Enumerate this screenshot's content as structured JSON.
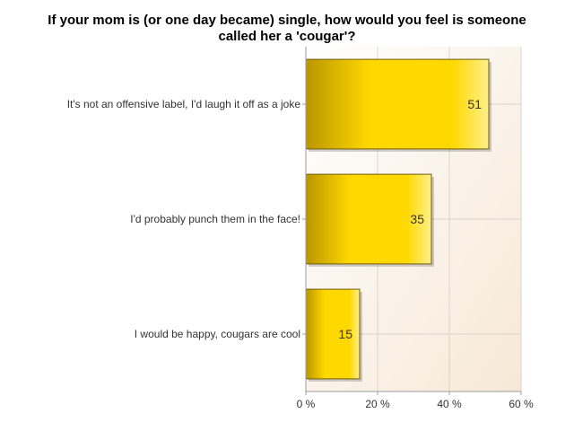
{
  "chart_data": {
    "type": "bar",
    "orientation": "horizontal",
    "title_lines": [
      "If your mom is (or one day became) single, how would you feel is someone",
      "called her a 'cougar'?"
    ],
    "categories": [
      "It's not an offensive label, I'd laugh it off as a joke",
      "I'd probably punch them in the face!",
      "I would be happy,  cougars are cool"
    ],
    "values": [
      51,
      35,
      15
    ],
    "value_labels": [
      "51",
      "35",
      "15"
    ],
    "xlim": [
      0,
      60
    ],
    "x_ticks": [
      0,
      20,
      40,
      60
    ],
    "x_tick_labels": [
      "0 %",
      "20 %",
      "40 %",
      "60 %"
    ],
    "grid": true,
    "colors": {
      "bar_dark": "#b99600",
      "bar_main": "#ffd800",
      "bar_light": "#fff08a",
      "bar_border": "#6e5a10",
      "plot_bg_top": "#ffffff",
      "plot_bg_bottom": "#f7e8d6",
      "grid": "#d9d4cc",
      "axis": "#9b9b9b"
    }
  }
}
